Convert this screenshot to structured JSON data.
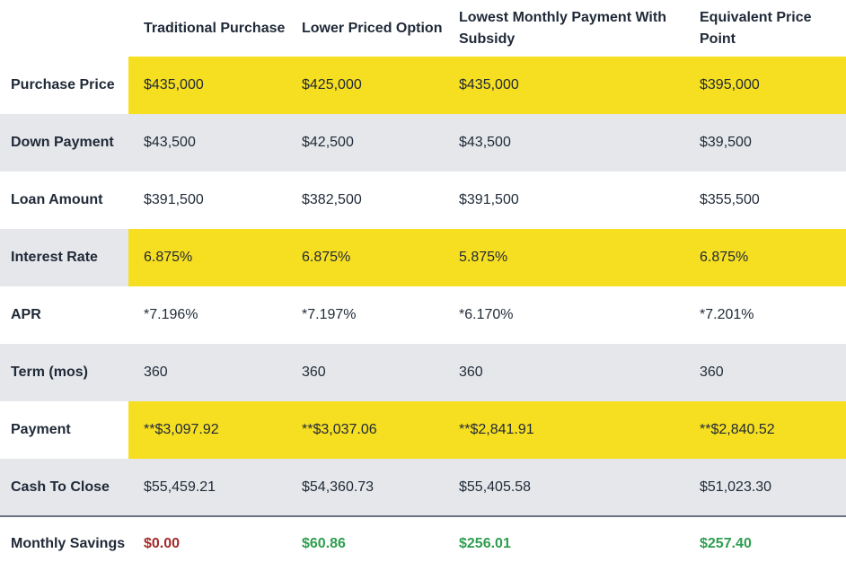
{
  "columns": [
    "Traditional Purchase",
    "Lower Priced Option",
    "Lowest Monthly Payment With Subsidy",
    "Equivalent Price Point"
  ],
  "rows": [
    {
      "label": "Purchase Price",
      "values": [
        "$435,000",
        "$425,000",
        "$435,000",
        "$395,000"
      ],
      "highlight": true
    },
    {
      "label": "Down Payment",
      "values": [
        "$43,500",
        "$42,500",
        "$43,500",
        "$39,500"
      ],
      "shade": true
    },
    {
      "label": "Loan Amount",
      "values": [
        "$391,500",
        "$382,500",
        "$391,500",
        "$355,500"
      ]
    },
    {
      "label": "Interest Rate",
      "values": [
        "6.875%",
        "6.875%",
        "5.875%",
        "6.875%"
      ],
      "highlight": true
    },
    {
      "label": "APR",
      "values": [
        "*7.196%",
        "*7.197%",
        "*6.170%",
        "*7.201%"
      ]
    },
    {
      "label": "Term (mos)",
      "values": [
        "360",
        "360",
        "360",
        "360"
      ],
      "shade": true
    },
    {
      "label": "Payment",
      "values": [
        "**$3,097.92",
        "**$3,037.06",
        "**$2,841.91",
        "**$2,840.52"
      ],
      "highlight": true
    },
    {
      "label": "Cash To Close",
      "values": [
        "$55,459.21",
        "$54,360.73",
        "$55,405.58",
        "$51,023.30"
      ],
      "shade": true
    }
  ],
  "savings": {
    "label": "Monthly Savings",
    "values": [
      "$0.00",
      "$60.86",
      "$256.01",
      "$257.40"
    ]
  },
  "colors": {
    "highlight": "#f6de21",
    "shade": "#e5e7eb",
    "savings_zero": "#a52a2a",
    "savings_positive": "#2e9e4f"
  }
}
